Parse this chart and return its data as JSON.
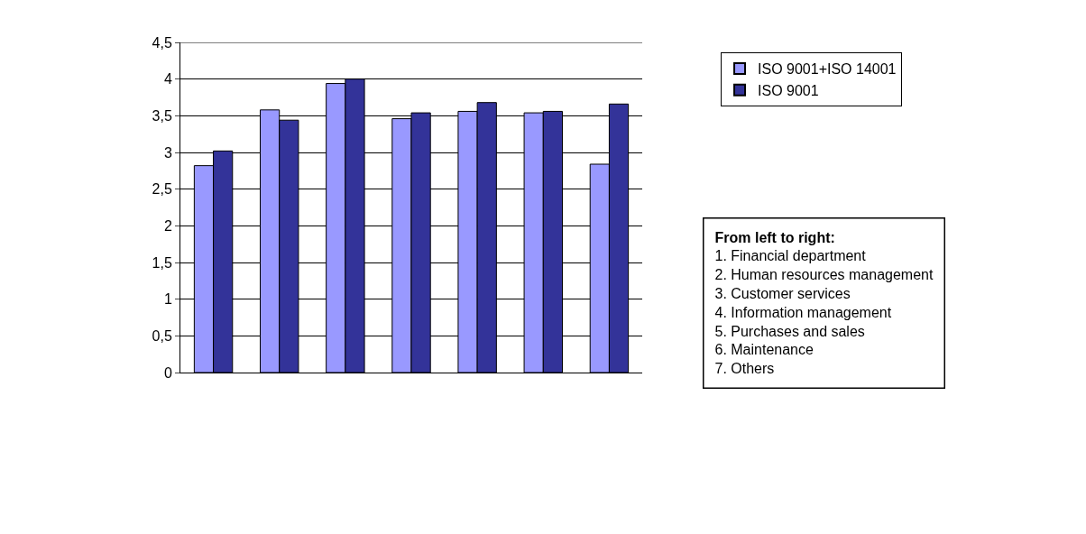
{
  "chart_data": {
    "type": "bar",
    "categories": [
      null,
      null,
      null,
      null,
      null,
      null,
      null
    ],
    "series": [
      {
        "name": "ISO 9001+ISO 14001",
        "color": "#9999ff",
        "values": [
          2.82,
          3.58,
          3.94,
          3.46,
          3.56,
          3.54,
          2.84
        ]
      },
      {
        "name": "ISO 9001",
        "color": "#333399",
        "values": [
          3.02,
          3.44,
          4.0,
          3.54,
          3.68,
          3.56,
          3.66
        ]
      }
    ],
    "ylim": [
      0,
      4.5
    ],
    "yticks": [
      {
        "value": 0,
        "label": "0"
      },
      {
        "value": 0.5,
        "label": "0,5"
      },
      {
        "value": 1,
        "label": "1"
      },
      {
        "value": 1.5,
        "label": "1,5"
      },
      {
        "value": 2,
        "label": "2"
      },
      {
        "value": 2.5,
        "label": "2,5"
      },
      {
        "value": 3,
        "label": "3"
      },
      {
        "value": 3.5,
        "label": "3,5"
      },
      {
        "value": 4,
        "label": "4"
      },
      {
        "value": 4.5,
        "label": "4,5"
      }
    ],
    "grid": "y",
    "legend": "top right",
    "annotations": [
      "From left to right:",
      "1. Financial department",
      "2. Human resources management",
      "3. Customer services",
      "4. Information management",
      "5. Purchases and sales",
      "6. Maintenance",
      "7. Others"
    ]
  }
}
